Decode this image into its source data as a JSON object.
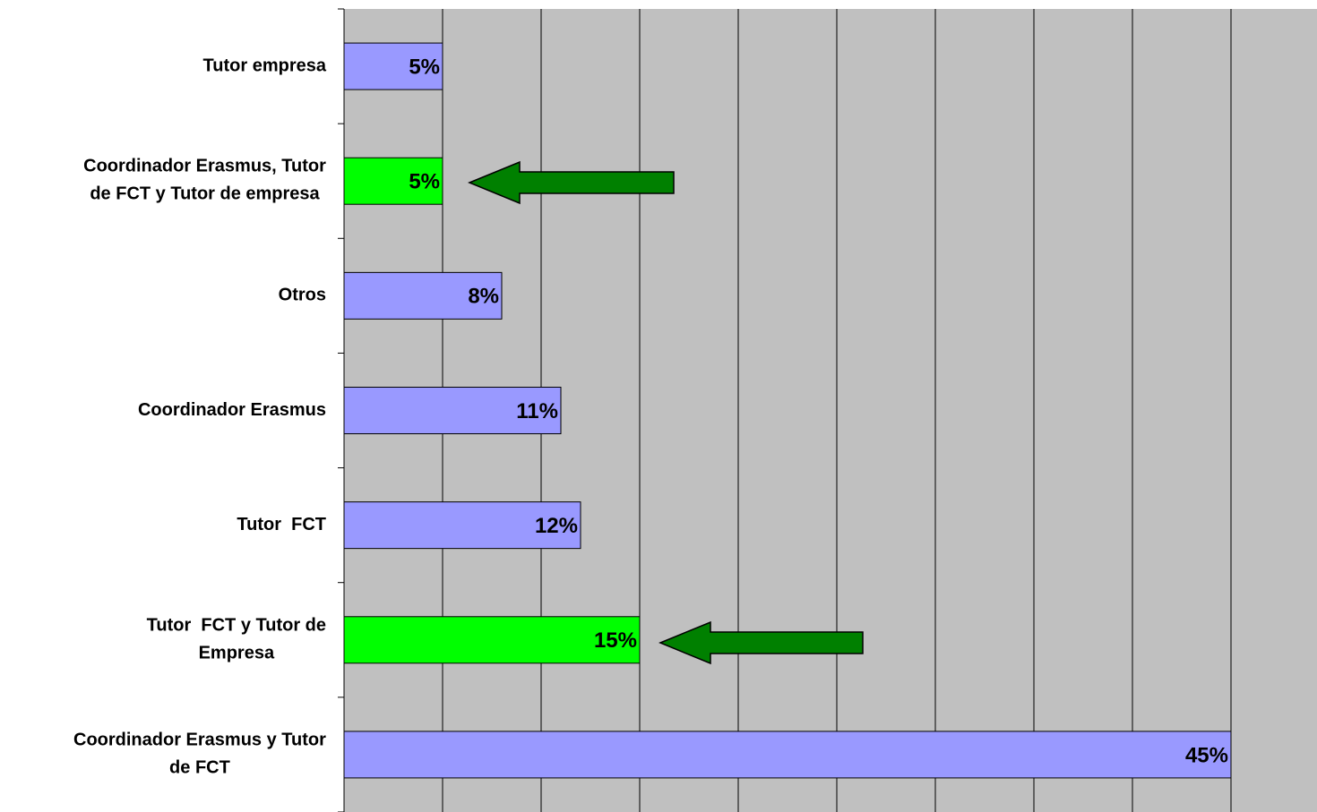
{
  "chart_data": {
    "type": "barh",
    "categories": [
      "Tutor empresa",
      "Coordinador Erasmus, Tutor\nde FCT y Tutor de empresa",
      "Otros",
      "Coordinador Erasmus",
      "Tutor  FCT",
      "Tutor  FCT y Tutor de\nEmpresa",
      "Coordinador Erasmus y Tutor\nde FCT"
    ],
    "values": [
      5,
      5,
      8,
      11,
      12,
      15,
      45
    ],
    "value_labels": [
      "5%",
      "5%",
      "8%",
      "11%",
      "12%",
      "15%",
      "45%"
    ],
    "colors": [
      "#9999ff",
      "#00ff00",
      "#9999ff",
      "#9999ff",
      "#9999ff",
      "#00ff00",
      "#9999ff"
    ],
    "xlim": [
      0,
      50
    ],
    "xticks": [
      0,
      5,
      10,
      15,
      20,
      25,
      30,
      35,
      40,
      45,
      50
    ],
    "grid": true
  }
}
